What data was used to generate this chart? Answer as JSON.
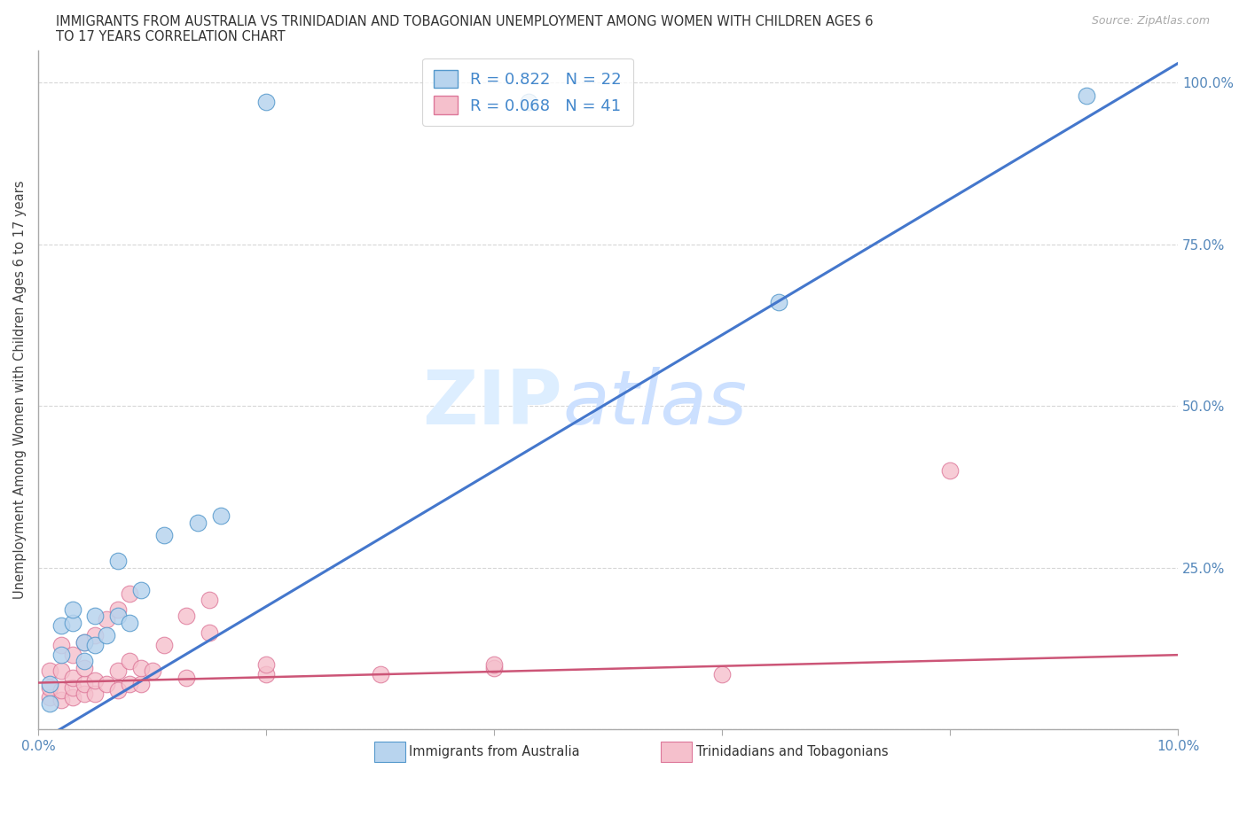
{
  "title_line1": "IMMIGRANTS FROM AUSTRALIA VS TRINIDADIAN AND TOBAGONIAN UNEMPLOYMENT AMONG WOMEN WITH CHILDREN AGES 6",
  "title_line2": "TO 17 YEARS CORRELATION CHART",
  "source": "Source: ZipAtlas.com",
  "ylabel": "Unemployment Among Women with Children Ages 6 to 17 years",
  "xlim": [
    0.0,
    0.1
  ],
  "ylim": [
    0.0,
    1.05
  ],
  "ytick_positions": [
    0.0,
    0.25,
    0.5,
    0.75,
    1.0
  ],
  "ytick_labels": [
    "",
    "25.0%",
    "50.0%",
    "75.0%",
    "100.0%"
  ],
  "xtick_positions": [
    0.0,
    0.02,
    0.04,
    0.06,
    0.08,
    0.1
  ],
  "xtick_labels": [
    "0.0%",
    "",
    "",
    "",
    "",
    "10.0%"
  ],
  "blue_R": 0.822,
  "blue_N": 22,
  "pink_R": 0.068,
  "pink_N": 41,
  "blue_fill": "#b8d4ee",
  "blue_edge": "#5599cc",
  "pink_fill": "#f5c0cc",
  "pink_edge": "#dd7799",
  "blue_line_color": "#4477cc",
  "pink_line_color": "#cc5577",
  "watermark_color": "#ddeeff",
  "blue_x": [
    0.001,
    0.001,
    0.002,
    0.002,
    0.003,
    0.003,
    0.004,
    0.004,
    0.005,
    0.005,
    0.006,
    0.007,
    0.007,
    0.008,
    0.009,
    0.011,
    0.014,
    0.016,
    0.02,
    0.043,
    0.065,
    0.092
  ],
  "blue_y": [
    0.04,
    0.07,
    0.115,
    0.16,
    0.165,
    0.185,
    0.105,
    0.135,
    0.13,
    0.175,
    0.145,
    0.175,
    0.26,
    0.165,
    0.215,
    0.3,
    0.32,
    0.33,
    0.97,
    0.97,
    0.66,
    0.98
  ],
  "pink_x": [
    0.001,
    0.001,
    0.001,
    0.002,
    0.002,
    0.002,
    0.002,
    0.003,
    0.003,
    0.003,
    0.003,
    0.004,
    0.004,
    0.004,
    0.004,
    0.005,
    0.005,
    0.005,
    0.006,
    0.006,
    0.007,
    0.007,
    0.007,
    0.008,
    0.008,
    0.008,
    0.009,
    0.009,
    0.01,
    0.011,
    0.013,
    0.013,
    0.015,
    0.015,
    0.02,
    0.02,
    0.03,
    0.04,
    0.04,
    0.06,
    0.08
  ],
  "pink_y": [
    0.05,
    0.065,
    0.09,
    0.045,
    0.06,
    0.09,
    0.13,
    0.05,
    0.065,
    0.08,
    0.115,
    0.055,
    0.07,
    0.095,
    0.135,
    0.055,
    0.075,
    0.145,
    0.07,
    0.17,
    0.06,
    0.09,
    0.185,
    0.07,
    0.105,
    0.21,
    0.07,
    0.095,
    0.09,
    0.13,
    0.08,
    0.175,
    0.15,
    0.2,
    0.085,
    0.1,
    0.085,
    0.095,
    0.1,
    0.085,
    0.4
  ],
  "blue_trendline_x0": 0.0,
  "blue_trendline_y0": -0.02,
  "blue_trendline_x1": 0.1,
  "blue_trendline_y1": 1.03,
  "pink_trendline_x0": 0.0,
  "pink_trendline_y0": 0.072,
  "pink_trendline_x1": 0.1,
  "pink_trendline_y1": 0.115
}
